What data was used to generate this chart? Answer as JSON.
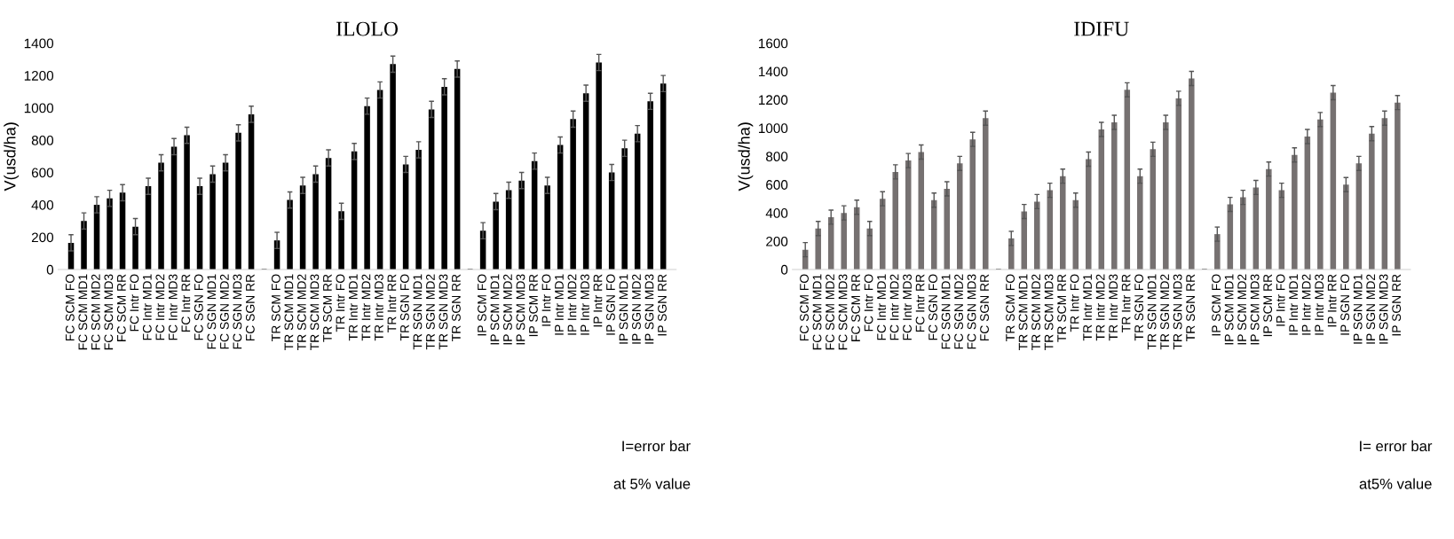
{
  "chart_data": [
    {
      "type": "bar",
      "title": "ILOLO",
      "ylabel": "V(usd/ha)",
      "color": "#000000",
      "ylim": [
        0,
        1400
      ],
      "yticks": [
        0,
        200,
        400,
        600,
        800,
        1000,
        1200,
        1400
      ],
      "grid": false,
      "legend": false,
      "categories": [
        "FC SCM FO",
        "FC SCM MD1",
        "FC SCM MD2",
        "FC SCM MD3",
        "FC SCM RR",
        "FC Intr FO",
        "FC Intr MD1",
        "FC Intr MD2",
        "FC Intr MD3",
        "FC Intr RR",
        "FC SGN FO",
        "FC SGN MD1",
        "FC SGN MD2",
        "FC SGN MD3",
        "FC SGN RR",
        null,
        "TR SCM FO",
        "TR SCM MD1",
        "TR SCM MD2",
        "TR SCM MD3",
        "TR SCM RR",
        "TR Intr FO",
        "TR Intr MD1",
        "TR Intr MD2",
        "TR Intr MD3",
        "TR Intr RR",
        "TR SGN FO",
        "TR SGN MD1",
        "TR SGN MD2",
        "TR SGN MD3",
        "TR SGN RR",
        null,
        "IP SCM FO",
        "IP SCM MD1",
        "IP SCM MD2",
        "IP SCM MD3",
        "IP SCM RR",
        "IP Intr FO",
        "IP Intr MD1",
        "IP Intr MD2",
        "IP Intr MD3",
        "IP Intr RR",
        "IP SGN FO",
        "IP SGN MD1",
        "IP SGN MD2",
        "IP SGN MD3",
        "IP SGN RR"
      ],
      "values": [
        165,
        300,
        400,
        440,
        475,
        265,
        515,
        660,
        760,
        830,
        515,
        590,
        660,
        845,
        960,
        null,
        180,
        430,
        520,
        590,
        690,
        360,
        730,
        1010,
        1110,
        1270,
        650,
        740,
        990,
        1130,
        1240,
        null,
        240,
        420,
        490,
        550,
        670,
        520,
        770,
        930,
        1090,
        1280,
        600,
        750,
        840,
        1040,
        1150
      ],
      "errors": [
        50,
        50,
        50,
        50,
        50,
        50,
        50,
        50,
        50,
        50,
        50,
        50,
        50,
        50,
        50,
        null,
        50,
        50,
        50,
        50,
        50,
        50,
        50,
        50,
        50,
        50,
        50,
        50,
        50,
        50,
        50,
        null,
        50,
        50,
        50,
        50,
        50,
        50,
        50,
        50,
        50,
        50,
        50,
        50,
        50,
        50,
        50
      ],
      "annotations": [
        "I=error bar",
        "at 5% value"
      ]
    },
    {
      "type": "bar",
      "title": "IDIFU",
      "ylabel": "V(usd/ha)",
      "color": "#767171",
      "ylim": [
        0,
        1600
      ],
      "yticks": [
        0,
        200,
        400,
        600,
        800,
        1000,
        1200,
        1400,
        1600
      ],
      "grid": false,
      "legend": false,
      "categories": [
        "FC SCM FO",
        "FC SCM MD1",
        "FC SCM MD2",
        "FC SCM MD3",
        "FC SCM RR",
        "FC Intr FO",
        "FC Intr MD1",
        "FC Intr MD2",
        "FC Intr MD3",
        "FC Intr RR",
        "FC SGN FO",
        "FC SGN MD1",
        "FC SGN MD2",
        "FC SGN MD3",
        "FC SGN RR",
        null,
        "TR SCM FO",
        "TR SCM MD1",
        "TR SCM MD2",
        "TR SCM MD3",
        "TR SCM RR",
        "TR Intr FO",
        "TR Intr MD1",
        "TR Intr MD2",
        "TR Intr MD3",
        "TR Intr RR",
        "TR SGN FO",
        "TR SGN MD1",
        "TR SGN MD2",
        "TR SGN MD3",
        "TR SGN RR",
        null,
        "IP SCM FO",
        "IP SCM MD1",
        "IP SCM MD2",
        "IP SCM MD3",
        "IP SCM RR",
        "IP Intr FO",
        "IP Intr MD1",
        "IP Intr MD2",
        "IP Intr MD3",
        "IP Intr RR",
        "IP SGN FO",
        "IP SGN MD1",
        "IP SGN MD2",
        "IP SGN MD3",
        "IP SGN RR"
      ],
      "values": [
        140,
        290,
        370,
        400,
        440,
        290,
        500,
        690,
        770,
        830,
        490,
        570,
        750,
        920,
        1070,
        null,
        220,
        410,
        480,
        560,
        660,
        490,
        780,
        990,
        1040,
        1270,
        660,
        850,
        1040,
        1210,
        1350,
        null,
        250,
        460,
        510,
        580,
        710,
        560,
        810,
        940,
        1060,
        1250,
        600,
        750,
        960,
        1070,
        1180
      ],
      "errors": [
        50,
        50,
        50,
        50,
        50,
        50,
        50,
        50,
        50,
        50,
        50,
        50,
        50,
        50,
        50,
        null,
        50,
        50,
        50,
        50,
        50,
        50,
        50,
        50,
        50,
        50,
        50,
        50,
        50,
        50,
        50,
        null,
        50,
        50,
        50,
        50,
        50,
        50,
        50,
        50,
        50,
        50,
        50,
        50,
        50,
        50,
        50
      ],
      "annotations": [
        "I= error bar",
        "at5% value"
      ]
    }
  ]
}
